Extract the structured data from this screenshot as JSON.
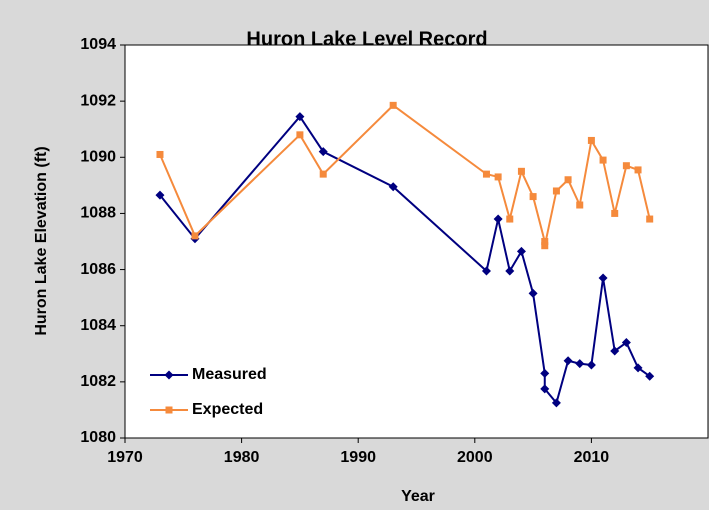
{
  "chart_data": {
    "type": "line",
    "title": "Huron Lake Level Record",
    "x_label": "Year",
    "y_label": "Huron Lake Elevation (ft)",
    "x": [
      1973,
      1976,
      1985,
      1987,
      1993,
      2001,
      2002,
      2003,
      2004,
      2005,
      2006,
      2006,
      2007,
      2008,
      2009,
      2010,
      2011,
      2012,
      2013,
      2014,
      2015
    ],
    "series": [
      {
        "name": "Measured",
        "color": "#000080",
        "marker": "diamond",
        "values": [
          1088.65,
          1087.1,
          1091.45,
          1090.2,
          1088.95,
          1085.95,
          1087.8,
          1085.95,
          1086.65,
          1085.15,
          1082.3,
          1081.75,
          1081.25,
          1082.75,
          1082.65,
          1082.6,
          1085.7,
          1083.1,
          1083.4,
          1082.5,
          1082.2
        ]
      },
      {
        "name": "Expected",
        "color": "#f58a3c",
        "marker": "square",
        "values": [
          1090.1,
          1087.2,
          1090.8,
          1089.4,
          1091.85,
          1089.4,
          1089.3,
          1087.8,
          1089.5,
          1088.6,
          1087.0,
          1086.85,
          1088.8,
          1089.2,
          1088.3,
          1090.6,
          1089.9,
          1088.0,
          1089.7,
          1089.55,
          1087.8
        ]
      }
    ],
    "xlim": [
      1970,
      2020
    ],
    "xticks": [
      1970,
      1980,
      1990,
      2000,
      2010
    ],
    "ylim": [
      1080,
      1094
    ],
    "yticks": [
      1080,
      1082,
      1084,
      1086,
      1088,
      1090,
      1092,
      1094
    ],
    "legend": "lower left"
  }
}
